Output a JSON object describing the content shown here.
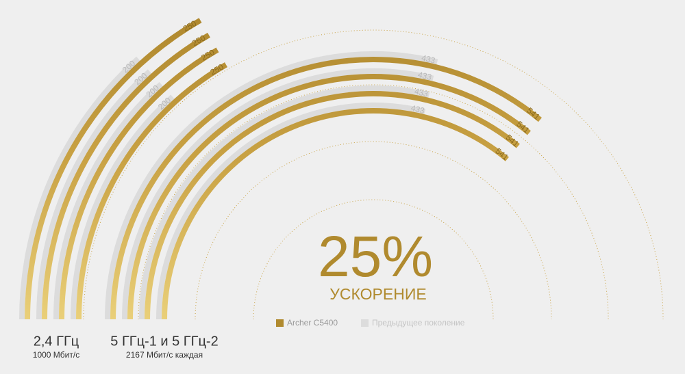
{
  "chart_data": {
    "type": "radial_bar",
    "title": "25%",
    "subtitle": "УСКОРЕНИЕ",
    "angle_lim": [
      0,
      750
    ],
    "legend": [
      {
        "name": "Archer C5400",
        "color": "#b08a2e"
      },
      {
        "name": "Предыдущее поколение",
        "color": "#dcdcdc"
      }
    ],
    "groups": [
      {
        "label": "2,4 ГГц",
        "sublabel": "1000 Мбит/с",
        "values": [
          250,
          250,
          250,
          250
        ],
        "previous_values": [
          200,
          200,
          200,
          200
        ]
      },
      {
        "label": "5 ГГц-1 и 5 ГГц-2",
        "sublabel": "2167 Мбит/с каждая",
        "values": [
          541,
          541,
          541,
          541
        ],
        "previous_values": [
          433,
          433,
          433,
          433
        ]
      }
    ]
  }
}
